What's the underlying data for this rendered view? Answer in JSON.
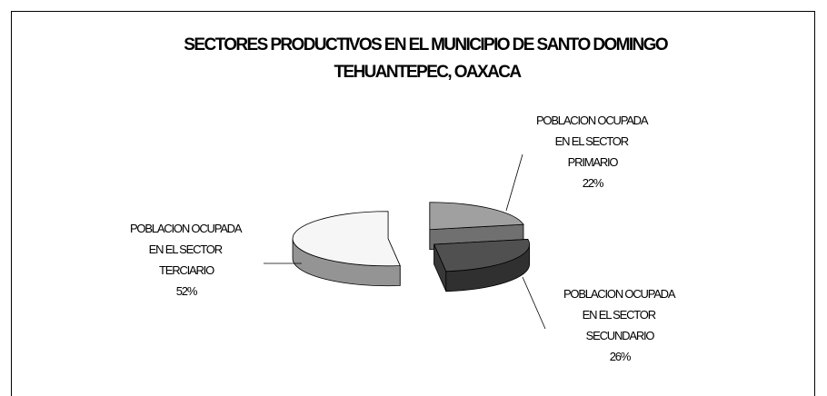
{
  "chart_data": {
    "type": "pie",
    "title": "SECTORES PRODUCTIVOS EN EL MUNICIPIO DE SANTO DOMINGO TEHUANTEPEC, OAXACA",
    "categories": [
      "POBLACION OCUPADA EN EL SECTOR PRIMARIO",
      "POBLACION OCUPADA EN EL SECTOR SECUNDARIO",
      "POBLACION OCUPADA EN EL SECTOR TERCIARIO"
    ],
    "values": [
      22,
      26,
      52
    ],
    "value_labels": [
      "22%",
      "26%",
      "52%"
    ],
    "colors": [
      "#a0a0a0",
      "#505050",
      "#f6f6f6"
    ]
  }
}
